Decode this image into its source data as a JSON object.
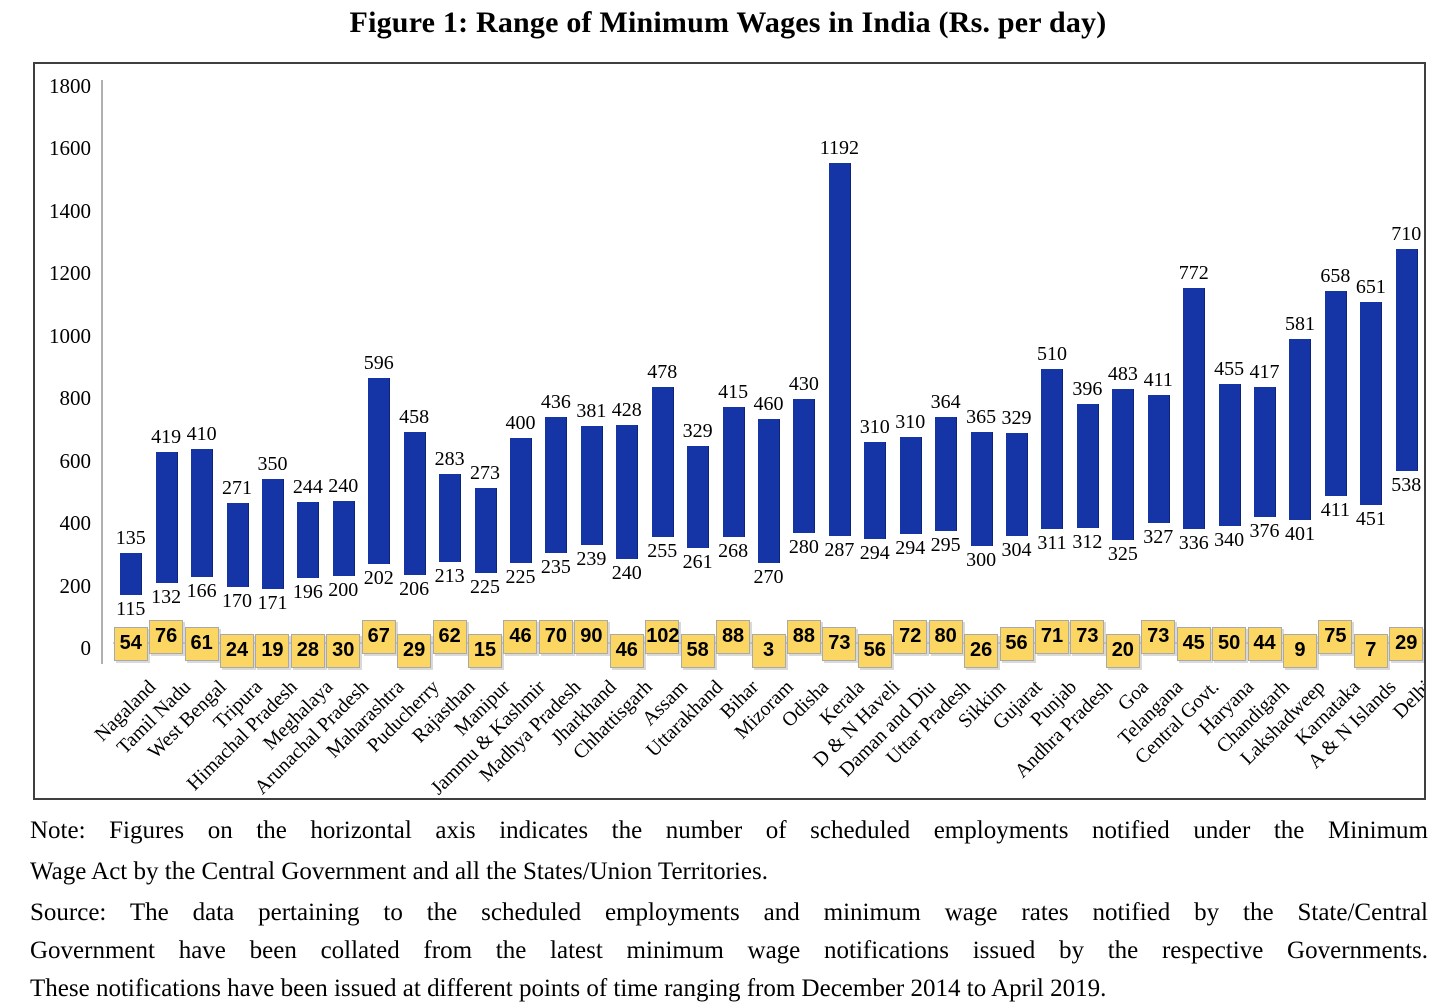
{
  "figure": {
    "title": "Figure 1: Range of Minimum Wages in India (Rs. per day)",
    "note_lines": [
      "Note: Figures on the horizontal axis indicates the number of scheduled employments notified under the Minimum",
      "Wage Act by the Central Government and all the States/Union Territories."
    ],
    "source_lines": [
      "Source: The data pertaining to the scheduled employments and minimum wage rates notified by the State/Central",
      "Government have been collated from the latest minimum wage notifications issued by the respective Governments.",
      "These notifications have been issued at different points of time ranging from December 2014 to April 2019."
    ]
  },
  "chart_data": {
    "type": "bar",
    "subtype": "floating_range_columns_stacked",
    "title": "Figure 1: Range of Minimum Wages in India (Rs. per day)",
    "xlabel": "",
    "ylabel": "",
    "ylim": [
      0,
      1800
    ],
    "ytick_step": 200,
    "grid": false,
    "legend_position": "none",
    "render_rule": "Excel stacked columns: invisible base = employments + min_wage; visible blue bar height = max_wage. Bar bottom value = employments + min_wage; bar top = employments + min_wage + max_wage. min_wage printed below bar, max_wage above bar, employments in yellow box at axis.",
    "categories": [
      "Nagaland",
      "Tamil Nadu",
      "West Bengal",
      "Tripura",
      "Himachal Pradesh",
      "Meghalaya",
      "Arunachal Pradesh",
      "Maharashtra",
      "Puducherry",
      "Rajasthan",
      "Manipur",
      "Jammu & Kashmir",
      "Madhya Pradesh",
      "Jharkhand",
      "Chhattisgarh",
      "Assam",
      "Uttarakhand",
      "Bihar",
      "Mizoram",
      "Odisha",
      "Kerala",
      "D & N Haveli",
      "Daman and Diu",
      "Uttar Pradesh",
      "Sikkim",
      "Gujarat",
      "Punjab",
      "Andhra Pradesh",
      "Goa",
      "Telangana",
      "Central Govt.",
      "Haryana",
      "Chandigarh",
      "Lakshadweep",
      "Karnataka",
      "A & N Islands",
      "Delhi"
    ],
    "series": [
      {
        "name": "scheduled_employments",
        "values": [
          54,
          76,
          61,
          24,
          19,
          28,
          30,
          67,
          29,
          62,
          15,
          46,
          70,
          90,
          46,
          102,
          58,
          88,
          3,
          88,
          73,
          56,
          72,
          80,
          26,
          56,
          71,
          73,
          20,
          73,
          45,
          50,
          44,
          9,
          75,
          7,
          29
        ]
      },
      {
        "name": "min_wage",
        "values": [
          115,
          132,
          166,
          170,
          171,
          196,
          200,
          202,
          206,
          213,
          225,
          225,
          235,
          239,
          240,
          255,
          261,
          268,
          270,
          280,
          287,
          294,
          294,
          295,
          300,
          304,
          311,
          312,
          325,
          327,
          336,
          340,
          376,
          401,
          411,
          451,
          538
        ]
      },
      {
        "name": "max_wage",
        "values": [
          135,
          419,
          410,
          271,
          350,
          244,
          240,
          596,
          458,
          283,
          273,
          400,
          436,
          381,
          428,
          478,
          329,
          415,
          460,
          430,
          1192,
          310,
          310,
          364,
          365,
          329,
          510,
          396,
          483,
          411,
          772,
          455,
          417,
          581,
          658,
          651,
          710
        ]
      }
    ],
    "colors": {
      "bar_fill": "#1535a6",
      "bar_edge": "#0c2378",
      "employment_box_fill": "#fbd662",
      "employment_box_border": "#a9a9a9",
      "axis_line": "#b0b0b0",
      "connector_line": "#cccccc",
      "text": "#000000",
      "frame_border": "#3f3f3f"
    }
  }
}
